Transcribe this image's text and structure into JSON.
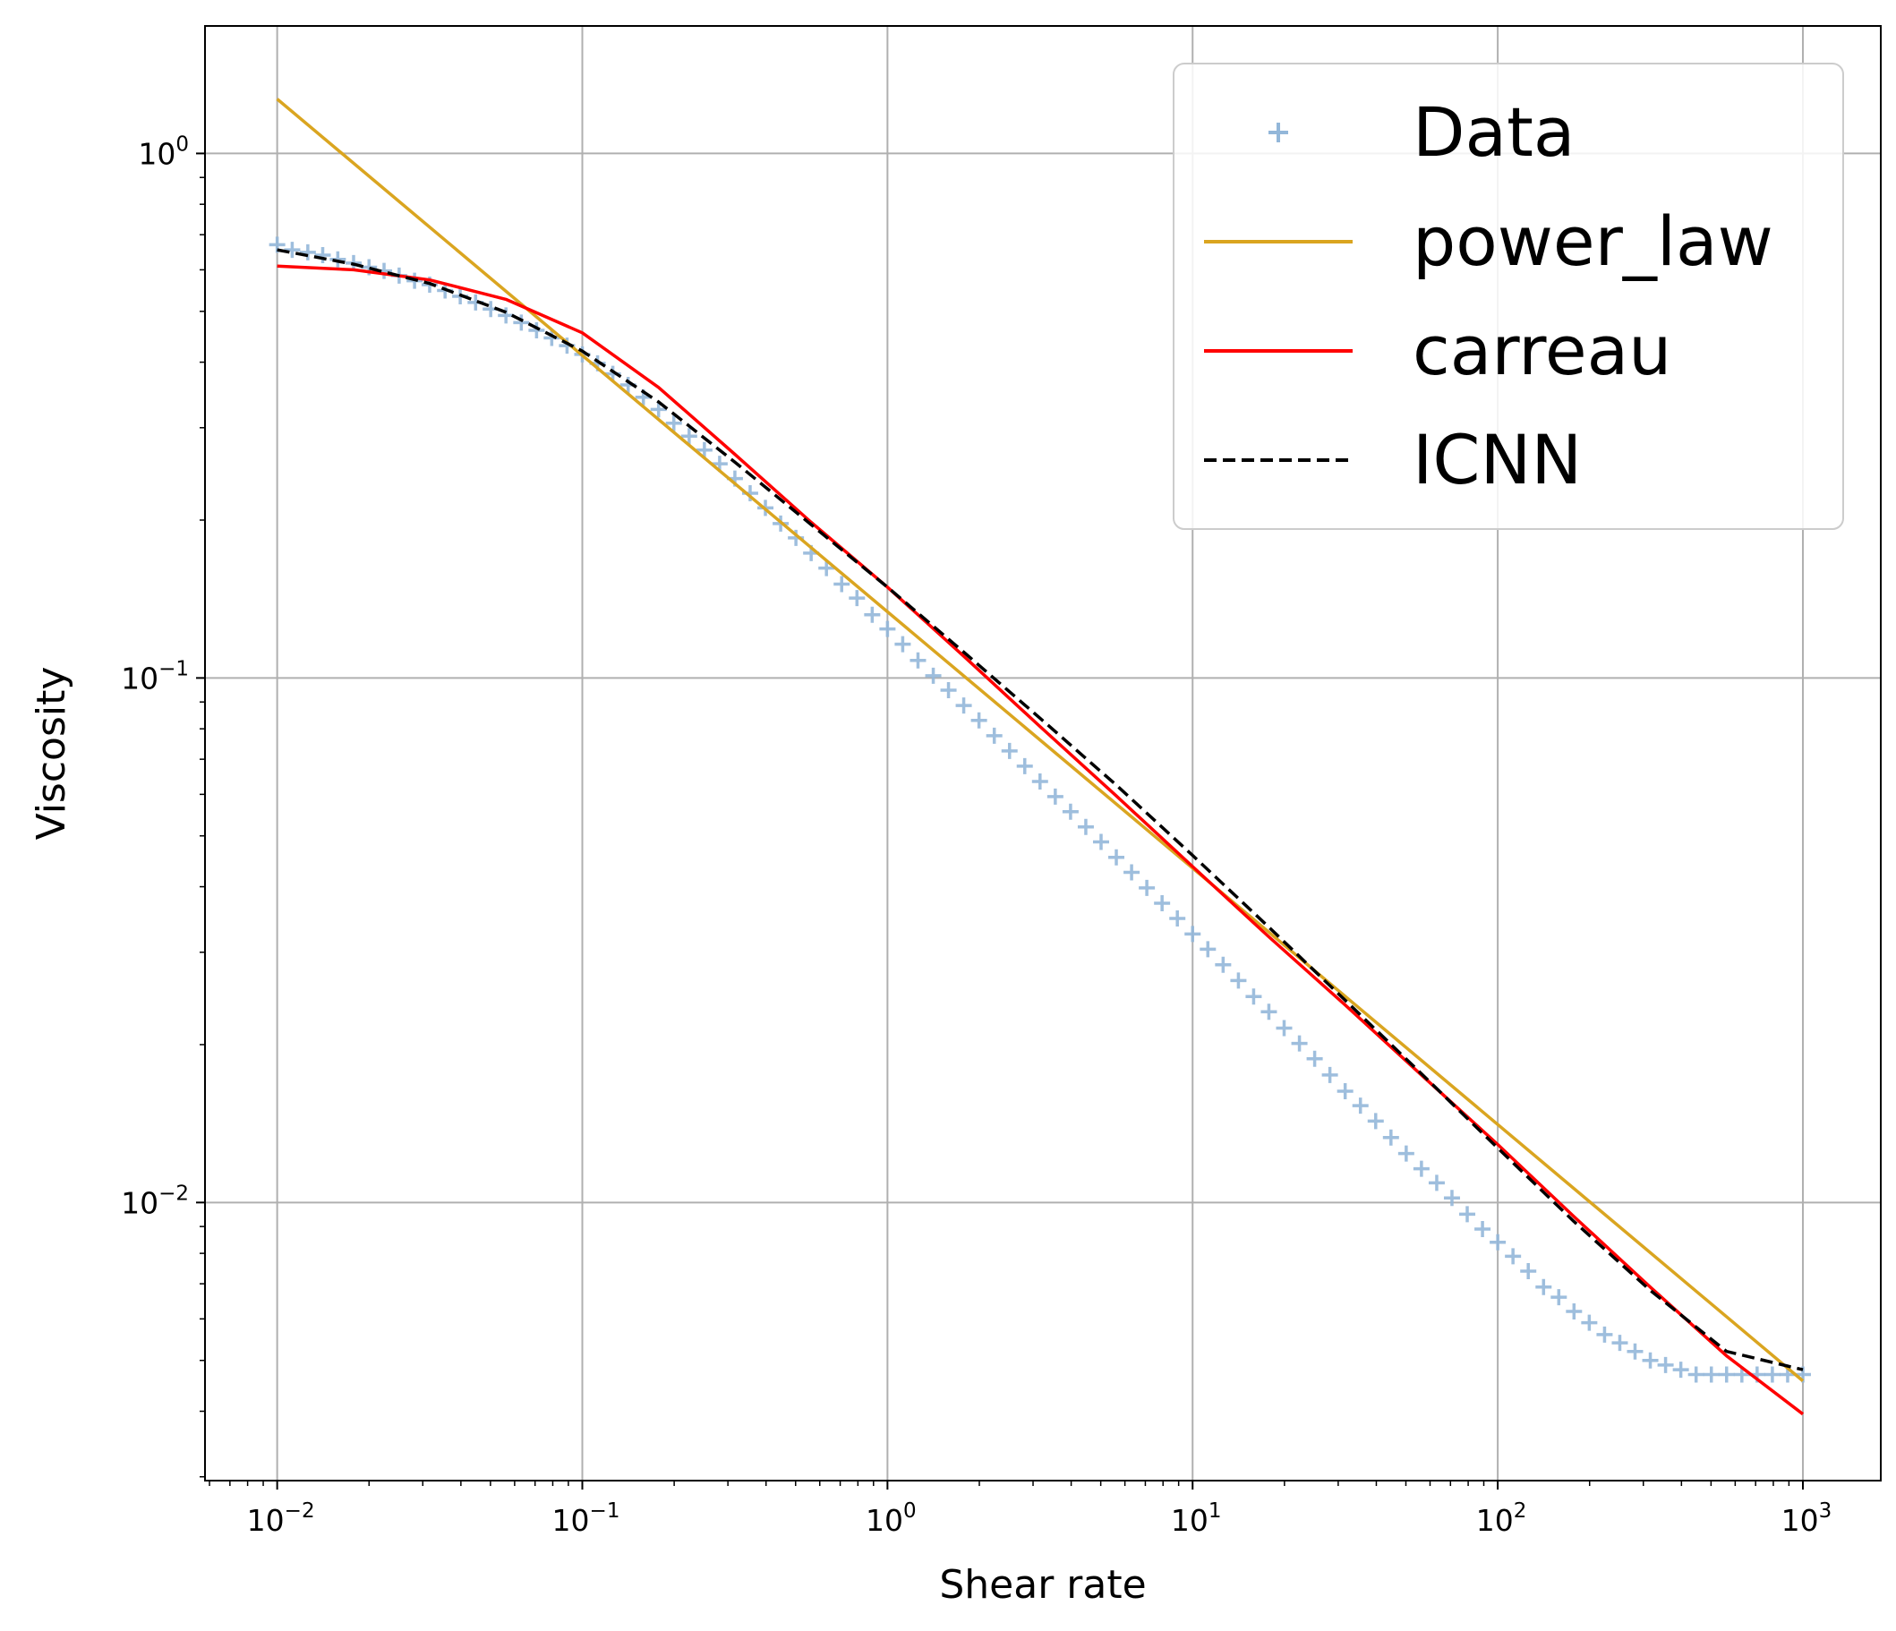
{
  "chart_data": {
    "type": "line",
    "title": "",
    "xlabel": "Shear rate",
    "ylabel": "Viscosity",
    "xscale": "log",
    "yscale": "log",
    "xlim": [
      0.0058,
      1800
    ],
    "ylim": [
      0.00295,
      1.75
    ],
    "xticks": [
      {
        "value": 0.01,
        "base": "10",
        "exp": "−2"
      },
      {
        "value": 0.1,
        "base": "10",
        "exp": "−1"
      },
      {
        "value": 1,
        "base": "10",
        "exp": "0"
      },
      {
        "value": 10,
        "base": "10",
        "exp": "1"
      },
      {
        "value": 100,
        "base": "10",
        "exp": "2"
      },
      {
        "value": 1000,
        "base": "10",
        "exp": "3"
      }
    ],
    "yticks": [
      {
        "value": 0.01,
        "base": "10",
        "exp": "−2"
      },
      {
        "value": 0.1,
        "base": "10",
        "exp": "−1"
      },
      {
        "value": 1,
        "base": "10",
        "exp": "0"
      }
    ],
    "grid": true,
    "legend_position": "top-right",
    "series": [
      {
        "name": "Data",
        "kind": "scatter",
        "marker": "+",
        "color": "#93b7d9",
        "x": [
          0.01,
          0.0112,
          0.0126,
          0.0141,
          0.0158,
          0.0178,
          0.02,
          0.0224,
          0.0251,
          0.0282,
          0.0316,
          0.0355,
          0.0398,
          0.0447,
          0.0501,
          0.0562,
          0.0631,
          0.0708,
          0.0794,
          0.0891,
          0.1,
          0.1122,
          0.1259,
          0.1413,
          0.1585,
          0.1778,
          0.1995,
          0.2239,
          0.2512,
          0.2818,
          0.3162,
          0.3548,
          0.3981,
          0.4467,
          0.5012,
          0.5623,
          0.631,
          0.7079,
          0.7943,
          0.8913,
          1,
          1.122,
          1.259,
          1.413,
          1.585,
          1.778,
          1.995,
          2.239,
          2.512,
          2.818,
          3.162,
          3.548,
          3.981,
          4.467,
          5.012,
          5.623,
          6.31,
          7.079,
          7.943,
          8.913,
          10,
          11.22,
          12.59,
          14.13,
          15.85,
          17.78,
          19.95,
          22.39,
          25.12,
          28.18,
          31.62,
          35.48,
          39.81,
          44.67,
          50.12,
          56.23,
          63.1,
          70.79,
          79.43,
          89.13,
          100,
          112.2,
          125.9,
          141.3,
          158.5,
          177.8,
          199.5,
          223.9,
          251.2,
          281.8,
          316.2,
          354.8,
          398.1,
          446.7,
          501.2,
          562.3,
          631,
          707.9,
          794.3,
          891.3,
          1000
        ],
        "y": [
          0.67,
          0.655,
          0.648,
          0.64,
          0.628,
          0.618,
          0.607,
          0.597,
          0.585,
          0.572,
          0.562,
          0.548,
          0.534,
          0.52,
          0.505,
          0.491,
          0.476,
          0.46,
          0.445,
          0.43,
          0.414,
          0.398,
          0.38,
          0.362,
          0.343,
          0.325,
          0.306,
          0.289,
          0.272,
          0.256,
          0.24,
          0.225,
          0.211,
          0.197,
          0.185,
          0.173,
          0.162,
          0.151,
          0.142,
          0.132,
          0.124,
          0.116,
          0.108,
          0.101,
          0.0948,
          0.0886,
          0.083,
          0.0776,
          0.0726,
          0.0679,
          0.0635,
          0.0594,
          0.0556,
          0.052,
          0.0487,
          0.0455,
          0.0426,
          0.0398,
          0.0372,
          0.0348,
          0.0325,
          0.0304,
          0.0284,
          0.0265,
          0.0247,
          0.0231,
          0.0215,
          0.0201,
          0.0188,
          0.0175,
          0.0163,
          0.0153,
          0.0143,
          0.0133,
          0.0124,
          0.0116,
          0.0109,
          0.0102,
          0.0095,
          0.0089,
          0.0084,
          0.0079,
          0.0074,
          0.0069,
          0.0066,
          0.0062,
          0.0059,
          0.0056,
          0.0054,
          0.0052,
          0.005,
          0.0049,
          0.0048,
          0.0047,
          0.0047,
          0.0047,
          0.0047,
          0.0047,
          0.0047,
          0.0047,
          0.0047
        ]
      },
      {
        "name": "power_law",
        "kind": "line",
        "color": "#daa520",
        "x": [
          0.01,
          1000
        ],
        "y": [
          1.27,
          0.00457
        ]
      },
      {
        "name": "carreau",
        "kind": "line",
        "color": "#ff0000",
        "x": [
          0.01,
          0.0178,
          0.0316,
          0.0562,
          0.1,
          0.1778,
          0.3162,
          0.5623,
          1,
          1.778,
          3.162,
          5.623,
          10,
          17.78,
          31.62,
          56.23,
          100,
          177.8,
          316.2,
          562.3,
          1000
        ],
        "y": [
          0.61,
          0.6,
          0.574,
          0.527,
          0.455,
          0.358,
          0.267,
          0.198,
          0.149,
          0.11,
          0.0808,
          0.0596,
          0.0437,
          0.0321,
          0.0238,
          0.0175,
          0.0129,
          0.0094,
          0.0069,
          0.0051,
          0.00395
        ]
      },
      {
        "name": "ICNN",
        "kind": "line",
        "dash": "dashed",
        "color": "#000000",
        "x": [
          0.01,
          0.0178,
          0.0316,
          0.0562,
          0.1,
          0.1778,
          0.3162,
          0.5623,
          1,
          1.778,
          3.162,
          5.623,
          10,
          17.78,
          31.62,
          56.23,
          100,
          177.8,
          316.2,
          562.3,
          1000
        ],
        "y": [
          0.655,
          0.615,
          0.565,
          0.498,
          0.42,
          0.336,
          0.258,
          0.196,
          0.149,
          0.112,
          0.0838,
          0.0625,
          0.0459,
          0.0335,
          0.0243,
          0.0176,
          0.0127,
          0.0092,
          0.0068,
          0.0052,
          0.0048
        ]
      }
    ]
  }
}
